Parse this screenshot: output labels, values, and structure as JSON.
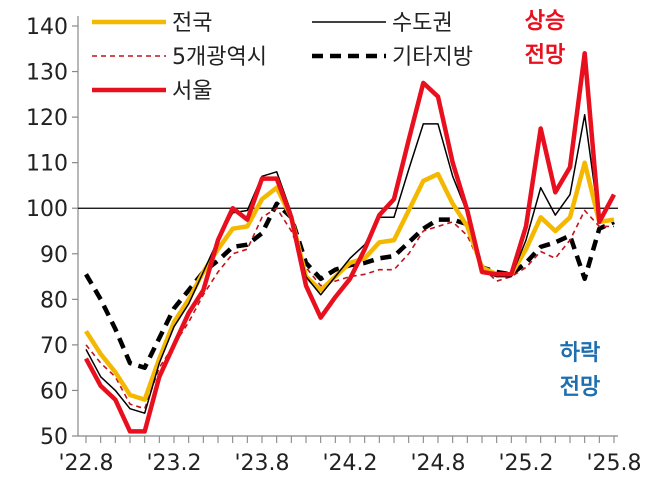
{
  "chart_data": {
    "type": "line",
    "x": [
      "'22.8",
      "'22.9",
      "'22.10",
      "'22.11",
      "'22.12",
      "'23.1",
      "'23.2",
      "'23.3",
      "'23.4",
      "'23.5",
      "'23.6",
      "'23.7",
      "'23.8",
      "'23.9",
      "'23.10",
      "'23.11",
      "'23.12",
      "'24.1",
      "'24.2",
      "'24.3",
      "'24.4",
      "'24.5",
      "'24.6",
      "'24.7",
      "'24.8",
      "'24.9",
      "'24.10",
      "'24.11",
      "'24.12",
      "'25.1",
      "'25.2",
      "'25.3",
      "'25.4",
      "'25.5",
      "'25.6",
      "'25.7",
      "'25.8"
    ],
    "x_tick_labels": [
      "'22.8",
      "'23.2",
      "'23.8",
      "'24.2",
      "'24.8",
      "'25.2",
      "'25.8"
    ],
    "yticks": [
      50,
      60,
      70,
      80,
      90,
      100,
      110,
      120,
      130,
      140
    ],
    "ylim": [
      50,
      140
    ],
    "reference_line": 100,
    "legend_position": "top",
    "series": [
      {
        "name": "전국",
        "color": "#F5B800",
        "style": "solid-thick",
        "values": [
          73,
          68,
          64,
          59,
          58,
          67,
          75,
          80,
          86,
          91,
          95.5,
          96,
          102,
          104.5,
          98,
          85,
          82,
          85,
          88,
          89,
          92.5,
          93,
          99.5,
          106,
          107.5,
          101,
          96,
          87,
          85.5,
          85.5,
          91,
          98,
          95,
          98,
          110,
          97,
          97.5
        ]
      },
      {
        "name": "수도권",
        "color": "#000000",
        "style": "solid-thin",
        "values": [
          69,
          63,
          60,
          56,
          55,
          66,
          74,
          79,
          86,
          93,
          99,
          99.5,
          107,
          108,
          99,
          85,
          81,
          85,
          89,
          92,
          98,
          98,
          108.5,
          118.5,
          118.5,
          107,
          99,
          86,
          85,
          85,
          93,
          104.5,
          98.5,
          103,
          120.5,
          97,
          103
        ]
      },
      {
        "name": "5개광역시",
        "color": "#C0141C",
        "style": "dashed-thin",
        "values": [
          70,
          66,
          63,
          57,
          56,
          65,
          70,
          75,
          81,
          86,
          90,
          91,
          98,
          100,
          95,
          87,
          83,
          84,
          85,
          85.5,
          86.5,
          86.5,
          90,
          95,
          96,
          97,
          94,
          87,
          84,
          85,
          87,
          90.5,
          89,
          93,
          99.5,
          96,
          96
        ]
      },
      {
        "name": "서울",
        "color": "#E8101E",
        "style": "solid-thick",
        "values": [
          67,
          61,
          58,
          51,
          51,
          63,
          70,
          77,
          82,
          93,
          100,
          97.5,
          106.5,
          106.5,
          98,
          83,
          76,
          80.5,
          84.5,
          91,
          98.5,
          102,
          115,
          127.5,
          124.5,
          110,
          99.5,
          86,
          85.5,
          85.5,
          96,
          117.5,
          103.5,
          109,
          134,
          97,
          103
        ]
      },
      {
        "name": "기타지방",
        "color": "#000000",
        "style": "dashed-thick",
        "values": [
          85.5,
          80,
          73.5,
          66,
          65,
          71.5,
          78,
          82,
          86,
          88.5,
          91.5,
          92,
          94.5,
          101,
          98,
          88,
          84.5,
          86.5,
          87.5,
          88,
          89,
          89.5,
          92.5,
          95.5,
          97.5,
          97.5,
          96.5,
          87,
          86,
          85.5,
          88,
          91.5,
          92.5,
          94,
          84.5,
          95.5,
          97
        ]
      }
    ],
    "annotations": [
      {
        "text_lines": [
          "상승",
          "전망"
        ],
        "color": "#E8101E",
        "position": "top-right"
      },
      {
        "text_lines": [
          "하락",
          "전망"
        ],
        "color": "#1F6FAF",
        "position": "bottom-right"
      }
    ]
  }
}
